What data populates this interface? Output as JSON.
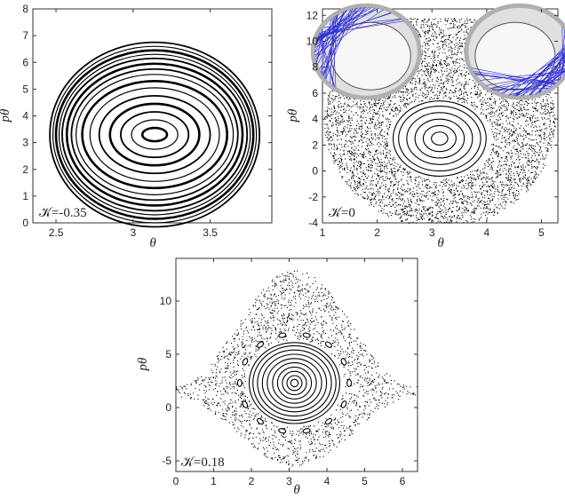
{
  "chart_data": [
    {
      "type": "scatter",
      "panel": "top-left",
      "xlabel": "θ",
      "ylabel": "pθ",
      "xlim": [
        2.35,
        3.9
      ],
      "ylim": [
        0,
        8
      ],
      "xticks": [
        2.5,
        3,
        3.5
      ],
      "yticks": [
        0,
        1,
        2,
        3,
        4,
        5,
        6,
        7,
        8
      ],
      "annotation": "𝒦=-0.35",
      "center": [
        3.14,
        3.3
      ],
      "orbits_rx": [
        0.08,
        0.15,
        0.22,
        0.29,
        0.36,
        0.42,
        0.47,
        0.51,
        0.54,
        0.57,
        0.6,
        0.62,
        0.64,
        0.66,
        0.68
      ],
      "orbits_ry": [
        0.25,
        0.55,
        0.85,
        1.15,
        1.45,
        1.75,
        2.0,
        2.25,
        2.45,
        2.65,
        2.85,
        3.0,
        3.15,
        3.3,
        3.45
      ]
    },
    {
      "type": "scatter",
      "panel": "top-right",
      "xlabel": "θ",
      "ylabel": "pθ",
      "xlim": [
        1,
        5.3
      ],
      "ylim": [
        -4,
        12.5
      ],
      "xticks": [
        1,
        2,
        3,
        4,
        5
      ],
      "yticks": [
        -4,
        -2,
        0,
        2,
        4,
        6,
        8,
        10,
        12
      ],
      "annotation": "𝒦=0",
      "center": [
        3.14,
        2.5
      ],
      "orbits_rx": [
        0.15,
        0.3,
        0.45,
        0.6,
        0.75,
        0.85
      ],
      "orbits_ry": [
        0.5,
        1.0,
        1.5,
        2.0,
        2.5,
        2.9
      ],
      "chaos_extent": {
        "x": [
          1.0,
          5.3
        ],
        "y": [
          -3.5,
          11.5
        ]
      },
      "insets": [
        {
          "cx": 1.8,
          "cy": 9.2
        },
        {
          "cx": 4.6,
          "cy": 9.2
        }
      ]
    },
    {
      "type": "scatter",
      "panel": "bottom",
      "xlabel": "θ",
      "ylabel": "pθ",
      "xlim": [
        0,
        6.4
      ],
      "ylim": [
        -6,
        14
      ],
      "xticks": [
        0,
        1,
        2,
        3,
        4,
        5,
        6
      ],
      "yticks": [
        -5,
        0,
        5,
        10
      ],
      "annotation": "𝒦=0.18",
      "center": [
        3.14,
        2.3
      ],
      "orbits_rx": [
        0.1,
        0.2,
        0.32,
        0.45,
        0.58,
        0.72,
        0.85,
        0.98,
        1.1,
        1.2
      ],
      "orbits_ry": [
        0.35,
        0.7,
        1.1,
        1.5,
        1.9,
        2.3,
        2.7,
        3.1,
        3.5,
        3.8
      ],
      "chaos_top": 13,
      "chaos_bottom": -5,
      "islands": 14
    }
  ]
}
